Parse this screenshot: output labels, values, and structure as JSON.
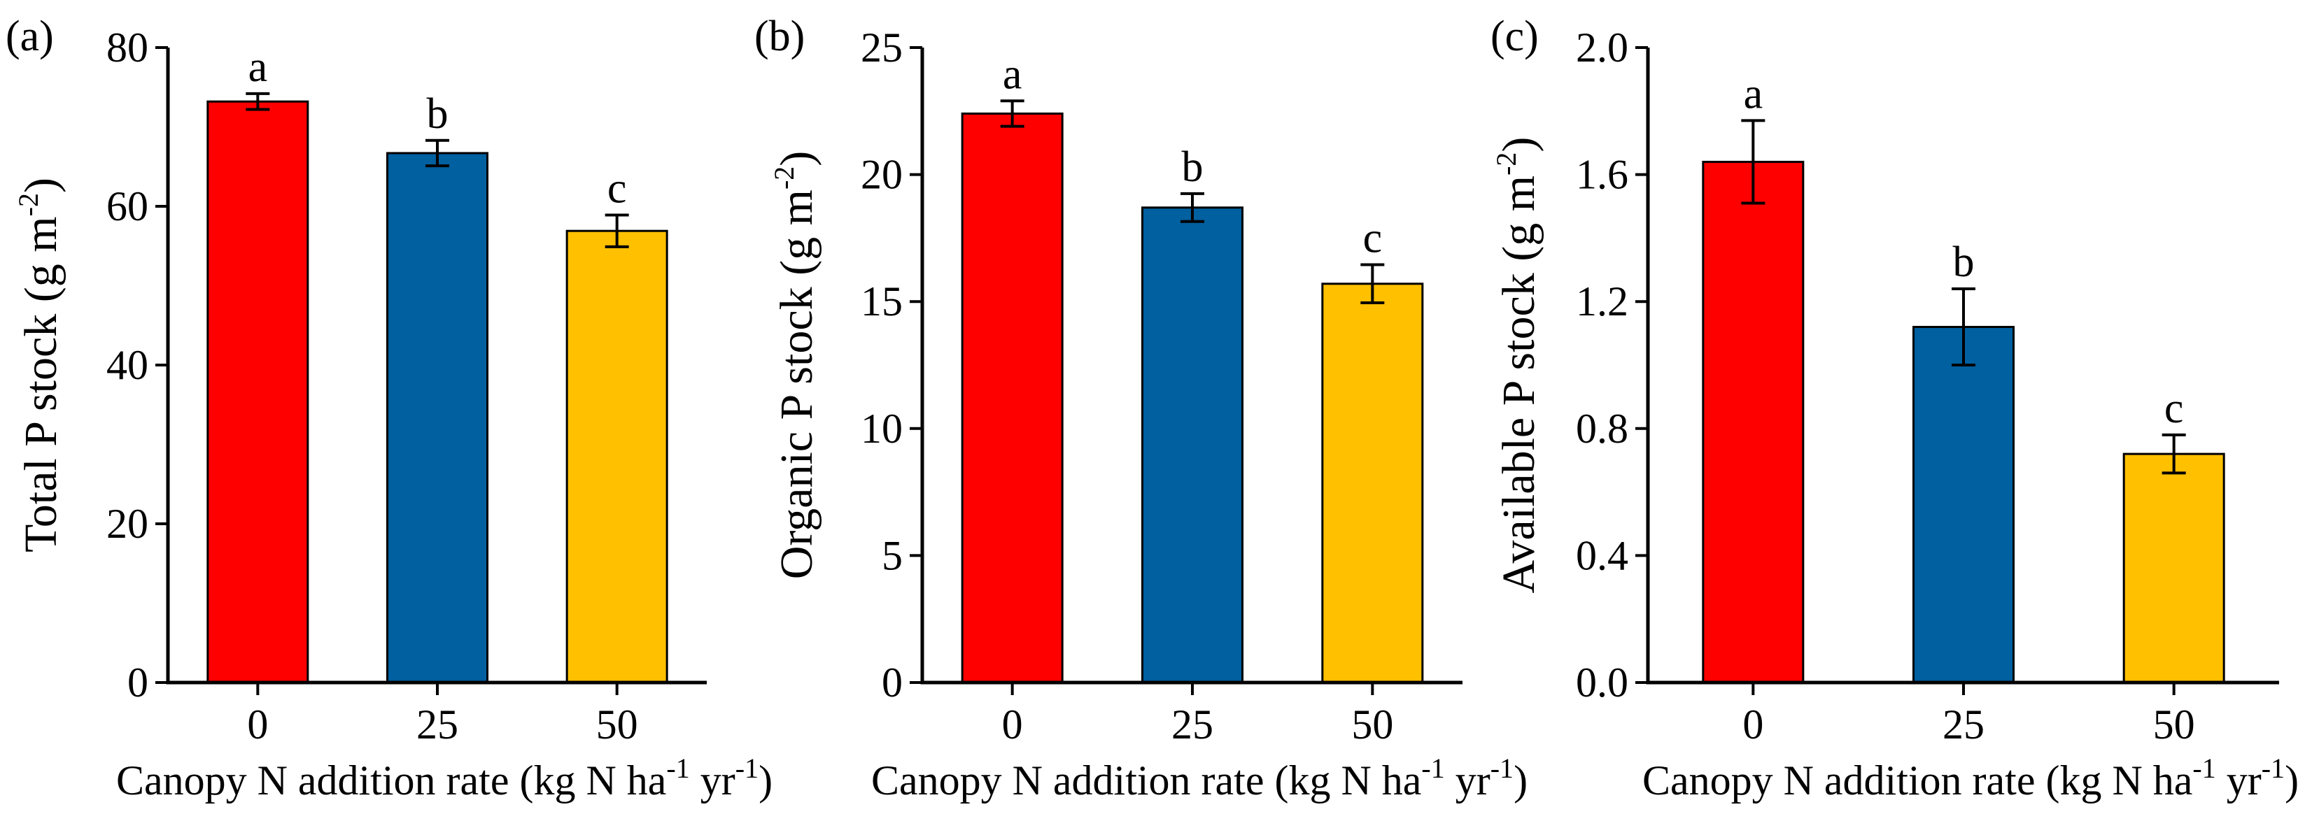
{
  "chart_data": [
    {
      "type": "bar",
      "panel_label": "(a)",
      "categories": [
        "0",
        "25",
        "50"
      ],
      "values": [
        73.2,
        66.7,
        56.9
      ],
      "errors": [
        1.0,
        1.6,
        2.0
      ],
      "significance": [
        "a",
        "b",
        "c"
      ],
      "colors": [
        "#ff0000",
        "#0060a0",
        "#ffc000"
      ],
      "ylabel": {
        "main": "Total P stock (g m",
        "sup": "-2",
        "tail": ")"
      },
      "xlabel": {
        "main": "Canopy N addition rate (kg N ha",
        "sup1": "-1",
        "mid": " yr",
        "sup2": "-1",
        "tail": ")"
      },
      "ylim": [
        0,
        80
      ],
      "yticks": [
        "0",
        "20",
        "40",
        "60",
        "80"
      ]
    },
    {
      "type": "bar",
      "panel_label": "(b)",
      "categories": [
        "0",
        "25",
        "50"
      ],
      "values": [
        22.4,
        18.7,
        15.7
      ],
      "errors": [
        0.5,
        0.55,
        0.75
      ],
      "significance": [
        "a",
        "b",
        "c"
      ],
      "colors": [
        "#ff0000",
        "#0060a0",
        "#ffc000"
      ],
      "ylabel": {
        "main": "Organic P stock (g m",
        "sup": "-2",
        "tail": ")"
      },
      "xlabel": {
        "main": "Canopy N addition rate (kg N ha",
        "sup1": "-1",
        "mid": " yr",
        "sup2": "-1",
        "tail": ")"
      },
      "ylim": [
        0,
        25
      ],
      "yticks": [
        "0",
        "5",
        "10",
        "15",
        "20",
        "25"
      ]
    },
    {
      "type": "bar",
      "panel_label": "(c)",
      "categories": [
        "0",
        "25",
        "50"
      ],
      "values": [
        1.64,
        1.12,
        0.72
      ],
      "errors": [
        0.13,
        0.12,
        0.06
      ],
      "significance": [
        "a",
        "b",
        "c"
      ],
      "colors": [
        "#ff0000",
        "#0060a0",
        "#ffc000"
      ],
      "ylabel": {
        "main": "Available P stock (g m",
        "sup": "-2",
        "tail": ")"
      },
      "xlabel": {
        "main": "Canopy N addition rate (kg N ha",
        "sup1": "-1",
        "mid": " yr",
        "sup2": "-1",
        "tail": ")"
      },
      "ylim": [
        0,
        2.0
      ],
      "yticks": [
        "0.0",
        "0.4",
        "0.8",
        "1.2",
        "1.6",
        "2.0"
      ]
    }
  ]
}
